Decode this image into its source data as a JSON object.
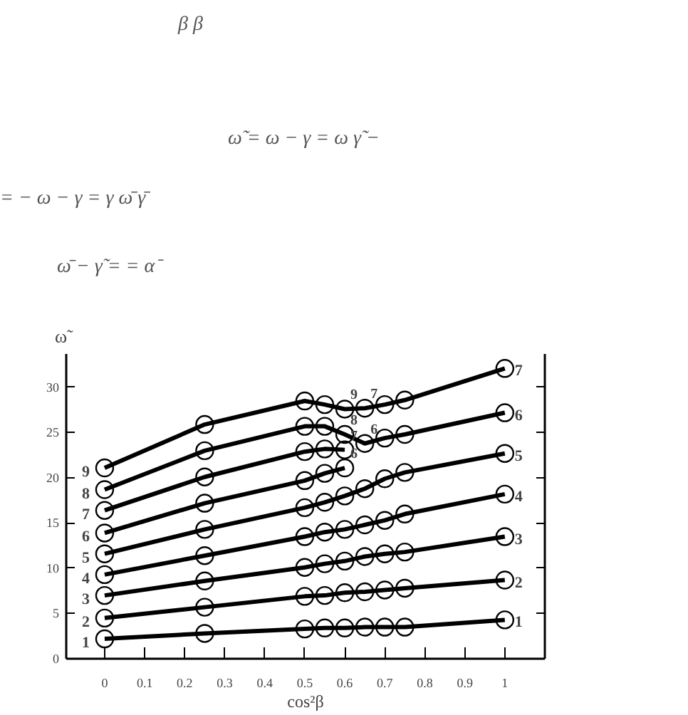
{
  "chart_data": {
    "type": "line",
    "xlabel": "cos²β",
    "ylabel": "ω̃",
    "x": [
      0,
      0.25,
      0.5,
      0.55,
      0.6,
      0.65,
      0.7,
      0.75,
      1
    ],
    "series": [
      {
        "color": "#000000",
        "values": [
          2.2,
          2.8,
          3.3,
          3.4,
          3.4,
          3.5,
          3.5,
          3.5,
          4.3
        ]
      },
      {
        "color": "#000000",
        "values": [
          4.5,
          5.7,
          6.9,
          7.0,
          7.3,
          7.4,
          7.6,
          7.8,
          8.7
        ]
      },
      {
        "color": "#000000",
        "values": [
          7.0,
          8.6,
          10.1,
          10.5,
          10.8,
          11.3,
          11.6,
          11.8,
          13.5
        ]
      },
      {
        "color": "#000000",
        "values": [
          9.3,
          11.4,
          13.5,
          14.0,
          14.3,
          14.8,
          15.3,
          16.0,
          18.2
        ]
      },
      {
        "color": "#000000",
        "values": [
          11.6,
          14.3,
          16.7,
          17.3,
          18.0,
          18.8,
          19.9,
          20.6,
          22.7
        ]
      },
      {
        "color": "#000000",
        "values": [
          13.9,
          17.2,
          19.7,
          20.5,
          21.1,
          null,
          null,
          null,
          null
        ]
      },
      {
        "color": "#000000",
        "values": [
          16.4,
          20.1,
          22.9,
          23.2,
          23.1,
          null,
          null,
          null,
          null
        ]
      },
      {
        "color": "#000000",
        "values": [
          18.7,
          23.0,
          25.7,
          25.7,
          24.8,
          23.8,
          24.4,
          24.8,
          27.2
        ]
      },
      {
        "color": "#000000",
        "values": [
          21.1,
          25.9,
          28.5,
          28.1,
          27.6,
          27.7,
          28.1,
          28.6,
          32.1
        ]
      }
    ],
    "marker": "circle",
    "line_style": "solid",
    "grid": false,
    "xlim": [
      -0.096,
      1.1
    ],
    "ylim": [
      0,
      33.7
    ],
    "xticks": [
      0,
      0.1,
      0.2,
      0.3,
      0.4,
      0.5,
      0.6,
      0.7,
      0.8,
      0.9,
      1
    ],
    "yticks": [
      0,
      5,
      10,
      15,
      20,
      25,
      30
    ],
    "annotations": [
      "β β",
      "ω̃ = ω − γ = ω γ̃ −",
      "= − ω − γ = γ ω̄ γ̄",
      "ω̄ − γ̃ = = α⁻",
      {
        "text": "1",
        "x": 0,
        "y": 2.2
      },
      {
        "text": "2",
        "x": 0,
        "y": 4.5
      },
      {
        "text": "3",
        "x": 0,
        "y": 7.0
      },
      {
        "text": "4",
        "x": 0,
        "y": 9.3
      },
      {
        "text": "5",
        "x": 0,
        "y": 11.6
      },
      {
        "text": "6",
        "x": 0,
        "y": 13.9
      },
      {
        "text": "7",
        "x": 0,
        "y": 16.4
      },
      {
        "text": "8",
        "x": 0,
        "y": 18.7
      },
      {
        "text": "9",
        "x": 0,
        "y": 21.1
      },
      {
        "text": "1",
        "x": 1,
        "y": 4.3
      },
      {
        "text": "2",
        "x": 1,
        "y": 8.7
      },
      {
        "text": "3",
        "x": 1,
        "y": 13.5
      },
      {
        "text": "4",
        "x": 1,
        "y": 18.2
      },
      {
        "text": "5",
        "x": 1,
        "y": 22.7
      },
      {
        "text": "6",
        "x": 1,
        "y": 27.2
      },
      {
        "text": "7",
        "x": 1,
        "y": 32.1
      },
      {
        "text": "9",
        "x": 0.6,
        "y": 27.6
      },
      {
        "text": "7",
        "x": 0.65,
        "y": 27.7
      },
      {
        "text": "8",
        "x": 0.6,
        "y": 24.8
      },
      {
        "text": "6",
        "x": 0.65,
        "y": 23.8
      },
      {
        "text": "7",
        "x": 0.6,
        "y": 23.1
      },
      {
        "text": "6",
        "x": 0.6,
        "y": 21.1
      }
    ]
  }
}
